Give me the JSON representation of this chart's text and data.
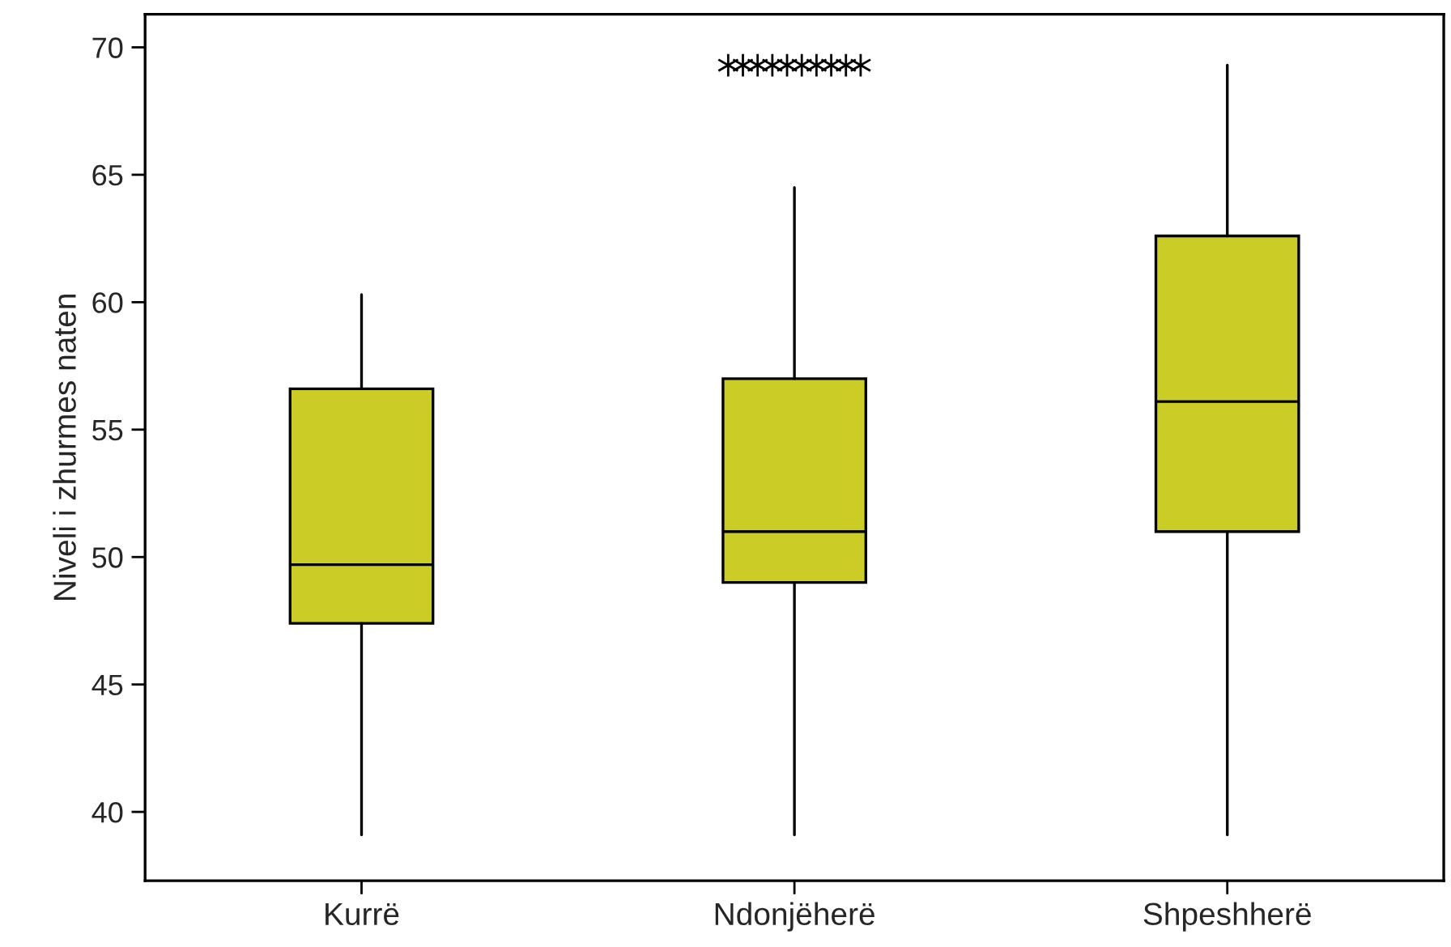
{
  "chart_data": {
    "type": "box",
    "ylabel": "Niveli i zhurmes naten",
    "categories": [
      "Kurrë",
      "Ndonjëherë",
      "Shpeshherë"
    ],
    "series": [
      {
        "color": "#cccc26",
        "boxes": [
          {
            "low": 39.1,
            "q1": 47.4,
            "median": 49.7,
            "q3": 56.6,
            "high": 60.3
          },
          {
            "low": 39.1,
            "q1": 49.0,
            "median": 51.0,
            "q3": 57.0,
            "high": 64.5,
            "outliers": [
              69.3,
              69.3,
              69.3,
              69.3,
              69.3,
              69.3,
              69.3,
              69.3,
              69.3,
              69.3
            ]
          },
          {
            "low": 39.1,
            "q1": 51.0,
            "median": 56.1,
            "q3": 62.6,
            "high": 69.3
          }
        ]
      }
    ],
    "ylim": [
      37.3,
      71.3
    ],
    "yticks": [
      40,
      45,
      50,
      55,
      60,
      65,
      70
    ],
    "grid": false,
    "marker": "star"
  }
}
